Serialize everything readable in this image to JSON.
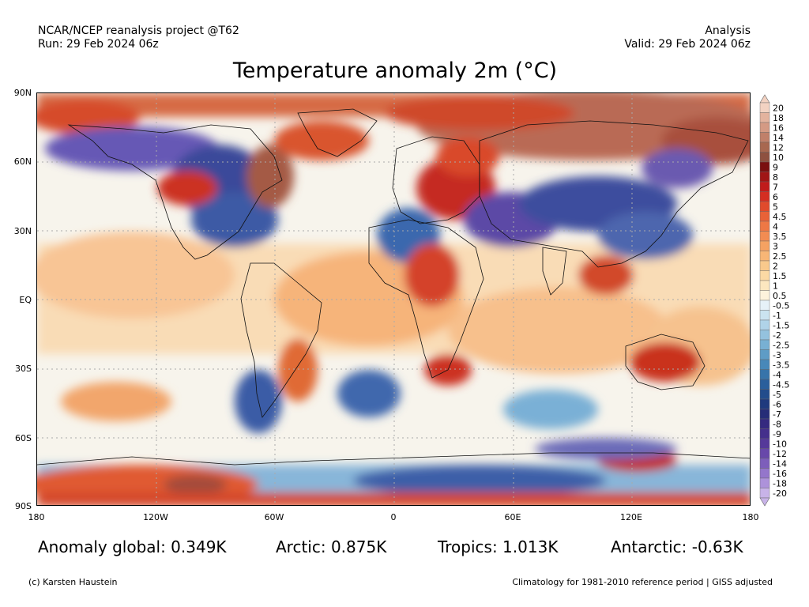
{
  "header": {
    "source": "NCAR/NCEP reanalysis project @T62",
    "run": "Run: 29 Feb 2024 06z",
    "type": "Analysis",
    "valid": "Valid: 29 Feb 2024 06z"
  },
  "map": {
    "title": "Temperature anomaly 2m (°C)",
    "lat_labels": [
      "90N",
      "60N",
      "30N",
      "EQ",
      "30S",
      "60S",
      "90S"
    ],
    "lon_labels": [
      "180",
      "120W",
      "60W",
      "0",
      "60E",
      "120E",
      "180"
    ]
  },
  "colorbar": {
    "labels": [
      "20",
      "18",
      "16",
      "14",
      "12",
      "10",
      "9",
      "8",
      "7",
      "6",
      "5",
      "4.5",
      "4",
      "3.5",
      "3",
      "2.5",
      "2",
      "1.5",
      "1",
      "0.5",
      "-0.5",
      "-1",
      "-1.5",
      "-2",
      "-2.5",
      "-3",
      "-3.5",
      "-4",
      "-4.5",
      "-5",
      "-6",
      "-7",
      "-8",
      "-9",
      "-10",
      "-12",
      "-14",
      "-16",
      "-18",
      "-20"
    ],
    "colors": [
      "#f2d2c2",
      "#e3b39e",
      "#d49a84",
      "#c0806a",
      "#a86850",
      "#8e5140",
      "#7a1010",
      "#a01515",
      "#c01c1c",
      "#d42e22",
      "#e04a2c",
      "#e86238",
      "#ee7845",
      "#f28c52",
      "#f5a262",
      "#f8b676",
      "#f9c98c",
      "#fbd9a4",
      "#fce7bf",
      "#fdf3dc",
      "#e6f1f8",
      "#cbe3f0",
      "#b0d3e8",
      "#94c2de",
      "#78b0d3",
      "#5e9cc6",
      "#4888b9",
      "#3774aa",
      "#2a5f9c",
      "#224c8c",
      "#1f3a7e",
      "#262d78",
      "#352a80",
      "#45308c",
      "#55399a",
      "#6848aa",
      "#7d5ebb",
      "#9476cb",
      "#ad92da",
      "#c8b3e8"
    ]
  },
  "stats": {
    "global": "Anomaly global: 0.349K",
    "arctic": "Arctic: 0.875K",
    "tropics": "Tropics: 1.013K",
    "antarctic": "Antarctic: -0.63K"
  },
  "footer": {
    "credit": "(c) Karsten Haustein",
    "note": "Climatology for 1981-2010 reference period | GISS adjusted"
  }
}
